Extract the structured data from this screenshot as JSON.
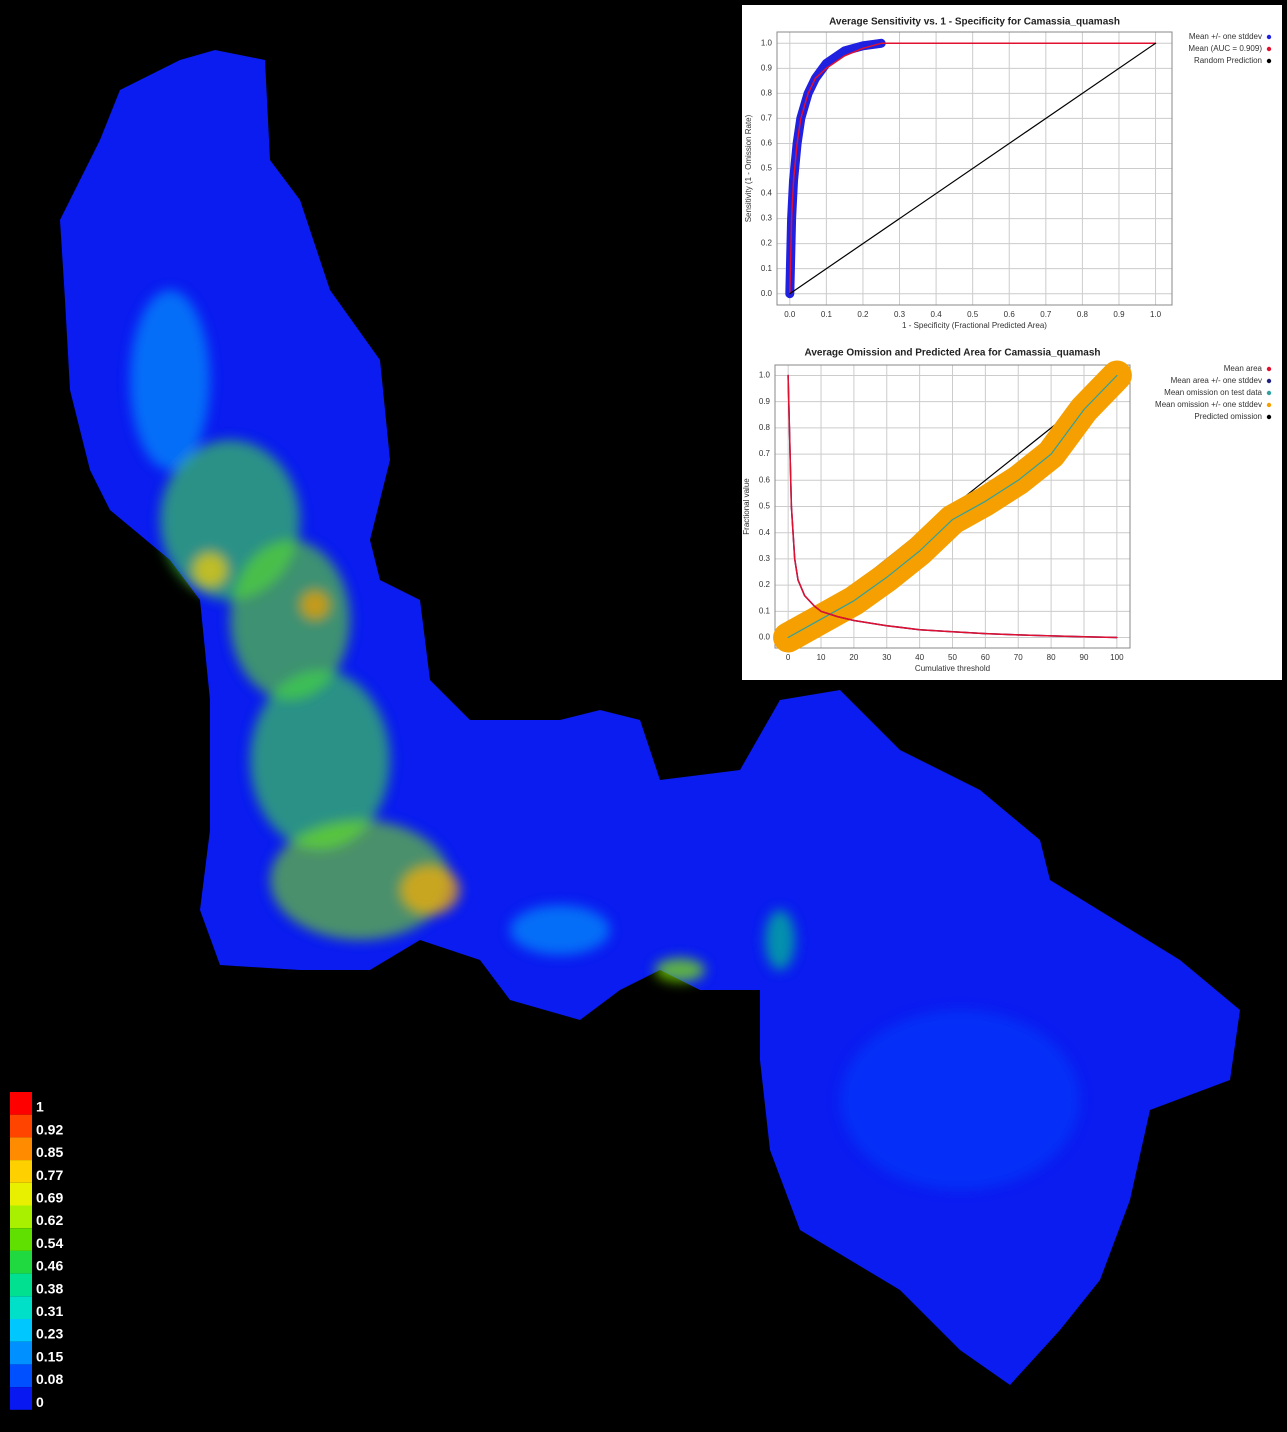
{
  "map": {
    "legend": {
      "labels": [
        1,
        0.92,
        0.85,
        0.77,
        0.69,
        0.62,
        0.54,
        0.46,
        0.38,
        0.31,
        0.23,
        0.15,
        0.08,
        0
      ],
      "colors": [
        "#ff0000",
        "#ff4400",
        "#ff8c00",
        "#ffd000",
        "#e8f000",
        "#a8f000",
        "#60e000",
        "#20d840",
        "#00e090",
        "#00e0c8",
        "#00c8ff",
        "#0090ff",
        "#0050ff",
        "#0818f0"
      ]
    }
  },
  "chart_data": [
    {
      "type": "line",
      "title": "Average Sensitivity vs. 1 - Specificity for Camassia_quamash",
      "x_label": "1 - Specificity (Fractional Predicted Area)",
      "y_label": "Sensitivity (1 - Omission Rate)",
      "xlim": [
        -0.035,
        1.045
      ],
      "ylim": [
        -0.045,
        1.045
      ],
      "xticks": [
        {
          "value": 0,
          "label": "0.0"
        },
        {
          "value": 0.1,
          "label": "0.1"
        },
        {
          "value": 0.2,
          "label": "0.2"
        },
        {
          "value": 0.3,
          "label": "0.3"
        },
        {
          "value": 0.4,
          "label": "0.4"
        },
        {
          "value": 0.5,
          "label": "0.5"
        },
        {
          "value": 0.6,
          "label": "0.6"
        },
        {
          "value": 0.7,
          "label": "0.7"
        },
        {
          "value": 0.8,
          "label": "0.8"
        },
        {
          "value": 0.9,
          "label": "0.9"
        },
        {
          "value": 1,
          "label": "1.0"
        }
      ],
      "yticks": [
        {
          "value": 0,
          "label": "0.0"
        },
        {
          "value": 0.1,
          "label": "0.1"
        },
        {
          "value": 0.2,
          "label": "0.2"
        },
        {
          "value": 0.3,
          "label": "0.3"
        },
        {
          "value": 0.4,
          "label": "0.4"
        },
        {
          "value": 0.5,
          "label": "0.5"
        },
        {
          "value": 0.6,
          "label": "0.6"
        },
        {
          "value": 0.7,
          "label": "0.7"
        },
        {
          "value": 0.8,
          "label": "0.8"
        },
        {
          "value": 0.9,
          "label": "0.9"
        },
        {
          "value": 1,
          "label": "1.0"
        }
      ],
      "grid": true,
      "series": [
        {
          "name": "Mean +/- one stddev",
          "color": "#2020e0",
          "x": [
            0,
            0.005,
            0.01,
            0.02,
            0.03,
            0.05,
            0.07,
            0.1,
            0.15,
            0.2,
            0.25
          ],
          "values": [
            0,
            0.3,
            0.45,
            0.6,
            0.7,
            0.8,
            0.86,
            0.92,
            0.97,
            0.99,
            1
          ]
        },
        {
          "name": "Mean (AUC = 0.909)",
          "color": "#e01030",
          "x": [
            0,
            0.005,
            0.01,
            0.02,
            0.03,
            0.05,
            0.07,
            0.1,
            0.15,
            0.2,
            0.25,
            0.3,
            1
          ],
          "values": [
            0,
            0.3,
            0.45,
            0.6,
            0.7,
            0.8,
            0.86,
            0.9,
            0.95,
            0.98,
            1,
            1,
            1
          ]
        },
        {
          "name": "Random Prediction",
          "color": "#000000",
          "x": [
            0,
            1
          ],
          "values": [
            0,
            1
          ]
        }
      ]
    },
    {
      "type": "line",
      "title": "Average Omission and Predicted Area for Camassia_quamash",
      "x_label": "Cumulative threshold",
      "y_label": "Fractional value",
      "xlim": [
        -4,
        104
      ],
      "ylim": [
        -0.04,
        1.04
      ],
      "xticks": [
        0,
        10,
        20,
        30,
        40,
        50,
        60,
        70,
        80,
        90,
        100
      ],
      "yticks": [
        {
          "value": 0,
          "label": "0.0"
        },
        {
          "value": 0.1,
          "label": "0.1"
        },
        {
          "value": 0.2,
          "label": "0.2"
        },
        {
          "value": 0.3,
          "label": "0.3"
        },
        {
          "value": 0.4,
          "label": "0.4"
        },
        {
          "value": 0.5,
          "label": "0.5"
        },
        {
          "value": 0.6,
          "label": "0.6"
        },
        {
          "value": 0.7,
          "label": "0.7"
        },
        {
          "value": 0.8,
          "label": "0.8"
        },
        {
          "value": 0.9,
          "label": "0.9"
        },
        {
          "value": 1,
          "label": "1.0"
        }
      ],
      "grid": true,
      "series": [
        {
          "name": "Mean area",
          "color": "#e01030",
          "x": [
            0,
            1,
            2,
            3,
            5,
            8,
            10,
            15,
            20,
            30,
            40,
            50,
            60,
            70,
            80,
            90,
            100
          ],
          "values": [
            1,
            0.5,
            0.3,
            0.22,
            0.16,
            0.12,
            0.1,
            0.08,
            0.065,
            0.045,
            0.03,
            0.022,
            0.015,
            0.01,
            0.006,
            0.003,
            0
          ]
        },
        {
          "name": "Mean area +/- one stddev",
          "color": "#202080",
          "x": [
            0,
            1,
            2,
            3,
            5,
            8,
            10,
            15,
            20,
            30,
            40,
            50,
            60,
            70,
            80,
            90,
            100
          ],
          "values": [
            1,
            0.5,
            0.3,
            0.22,
            0.16,
            0.12,
            0.1,
            0.08,
            0.065,
            0.045,
            0.03,
            0.022,
            0.015,
            0.01,
            0.006,
            0.003,
            0
          ]
        },
        {
          "name": "Mean omission on test data",
          "color": "#30a0a0",
          "x": [
            0,
            10,
            20,
            30,
            40,
            50,
            60,
            70,
            80,
            90,
            100
          ],
          "values": [
            0,
            0.07,
            0.14,
            0.23,
            0.33,
            0.45,
            0.52,
            0.6,
            0.7,
            0.87,
            1
          ]
        },
        {
          "name": "Mean omission +/- one stddev",
          "color": "#f5a000",
          "x": [
            0,
            10,
            20,
            30,
            40,
            50,
            60,
            70,
            80,
            90,
            100
          ],
          "values": [
            0,
            0.07,
            0.14,
            0.23,
            0.33,
            0.45,
            0.52,
            0.6,
            0.7,
            0.87,
            1
          ]
        },
        {
          "name": "Predicted omission",
          "color": "#000000",
          "x": [
            0,
            100
          ],
          "values": [
            0,
            1
          ]
        }
      ]
    }
  ]
}
